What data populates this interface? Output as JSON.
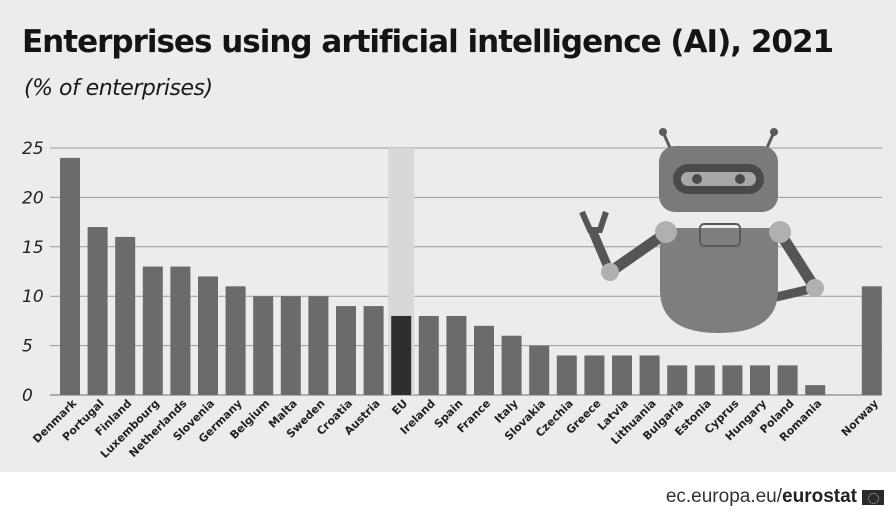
{
  "header": {
    "title": "Enterprises using artificial intelligence (AI), 2021",
    "subtitle": "(% of enterprises)"
  },
  "footer": {
    "domain": "ec.europa.eu/",
    "brand": "eurostat",
    "flag_icon": "eu-flag-icon"
  },
  "illustration": {
    "icon": "robot-icon"
  },
  "colors": {
    "panel_bg": "#ececec",
    "bar": "#6b6b6b",
    "bar_eu": "#2e2e2e",
    "eu_highlight": "#d8d8d8",
    "grid": "#9a9a9a"
  },
  "chart_data": {
    "type": "bar",
    "title": "Enterprises using artificial intelligence (AI), 2021",
    "subtitle": "(% of enterprises)",
    "xlabel": "",
    "ylabel": "",
    "ylim": [
      0,
      25
    ],
    "yticks": [
      "0",
      "5",
      "10",
      "15",
      "20",
      "25"
    ],
    "grid": true,
    "highlight": "EU",
    "categories": [
      "Denmark",
      "Portugal",
      "Finland",
      "Luxembourg",
      "Netherlands",
      "Slovenia",
      "Germany",
      "Belgium",
      "Malta",
      "Sweden",
      "Croatia",
      "Austria",
      "EU",
      "Ireland",
      "Spain",
      "France",
      "Italy",
      "Slovakia",
      "Czechia",
      "Greece",
      "Latvia",
      "Lithuania",
      "Bulgaria",
      "Estonia",
      "Cyprus",
      "Hungary",
      "Poland",
      "Romania",
      "Norway"
    ],
    "values": [
      24,
      17,
      16,
      13,
      13,
      12,
      11,
      10,
      10,
      10,
      9,
      9,
      8,
      8,
      8,
      7,
      6,
      5,
      4,
      4,
      4,
      4,
      3,
      3,
      3,
      3,
      3,
      1,
      11
    ]
  }
}
